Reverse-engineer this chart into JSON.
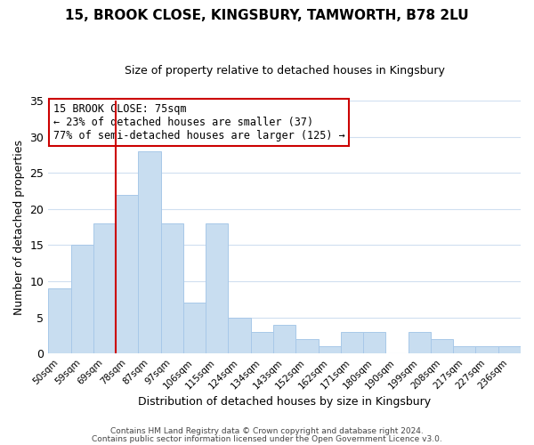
{
  "title": "15, BROOK CLOSE, KINGSBURY, TAMWORTH, B78 2LU",
  "subtitle": "Size of property relative to detached houses in Kingsbury",
  "xlabel": "Distribution of detached houses by size in Kingsbury",
  "ylabel": "Number of detached properties",
  "bar_labels": [
    "50sqm",
    "59sqm",
    "69sqm",
    "78sqm",
    "87sqm",
    "97sqm",
    "106sqm",
    "115sqm",
    "124sqm",
    "134sqm",
    "143sqm",
    "152sqm",
    "162sqm",
    "171sqm",
    "180sqm",
    "190sqm",
    "199sqm",
    "208sqm",
    "217sqm",
    "227sqm",
    "236sqm"
  ],
  "bar_values": [
    9,
    15,
    18,
    22,
    28,
    18,
    7,
    18,
    5,
    3,
    4,
    2,
    1,
    3,
    3,
    0,
    3,
    2,
    1,
    1,
    1
  ],
  "bar_color": "#c8ddf0",
  "bar_edge_color": "#a8c8e8",
  "vline_color": "#cc0000",
  "ylim": [
    0,
    35
  ],
  "yticks": [
    0,
    5,
    10,
    15,
    20,
    25,
    30,
    35
  ],
  "annotation_line1": "15 BROOK CLOSE: 75sqm",
  "annotation_line2": "← 23% of detached houses are smaller (37)",
  "annotation_line3": "77% of semi-detached houses are larger (125) →",
  "annotation_box_color": "#ffffff",
  "annotation_box_edge": "#cc0000",
  "footer1": "Contains HM Land Registry data © Crown copyright and database right 2024.",
  "footer2": "Contains public sector information licensed under the Open Government Licence v3.0.",
  "background_color": "#ffffff",
  "grid_color": "#d0dff0"
}
